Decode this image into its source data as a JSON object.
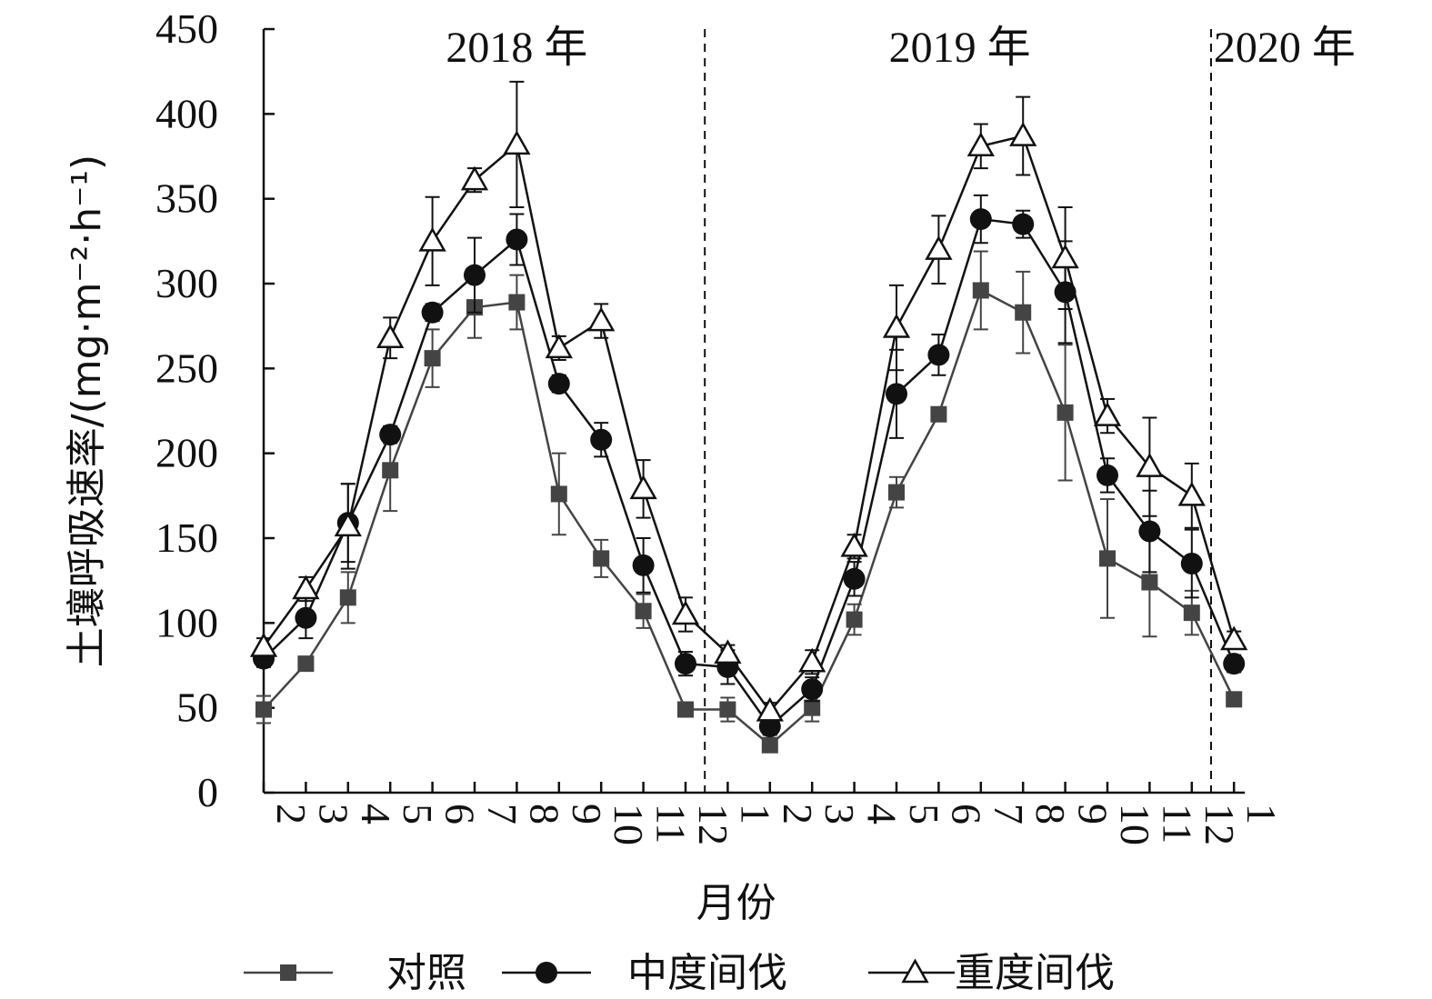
{
  "chart_data": {
    "type": "line",
    "ylabel": "土壤呼吸速率/(mg·m⁻²·h⁻¹)",
    "xlabel": "月份",
    "ylim": [
      0,
      450
    ],
    "yticks": [
      0,
      50,
      100,
      150,
      200,
      250,
      300,
      350,
      400,
      450
    ],
    "categories": [
      "2",
      "3",
      "4",
      "5",
      "6",
      "7",
      "8",
      "9",
      "10",
      "11",
      "12",
      "1",
      "2",
      "3",
      "4",
      "5",
      "6",
      "7",
      "8",
      "9",
      "10",
      "11",
      "12",
      "1"
    ],
    "year_labels": [
      {
        "label": "2018 年",
        "center_index": 6
      },
      {
        "label": "2019 年",
        "center_index": 16.5
      },
      {
        "label": "2020 年",
        "center_index": 24.2
      }
    ],
    "dividers_after_index": [
      10.5,
      22.5
    ],
    "grid": false,
    "legend_position": "bottom",
    "series": [
      {
        "name": "对照",
        "marker": "square",
        "color": "#444444",
        "values": [
          49,
          76,
          115,
          190,
          256,
          286,
          289,
          176,
          138,
          107,
          49,
          49,
          28,
          50,
          102,
          177,
          223,
          296,
          283,
          224,
          138,
          124,
          106,
          55
        ],
        "errors": [
          8,
          4,
          15,
          24,
          17,
          18,
          16,
          24,
          11,
          10,
          3,
          7,
          3,
          8,
          9,
          9,
          4,
          23,
          24,
          40,
          35,
          32,
          13,
          3
        ]
      },
      {
        "name": "中度间伐",
        "marker": "circle",
        "color": "#111111",
        "values": [
          79,
          103,
          159,
          211,
          283,
          305,
          326,
          241,
          208,
          134,
          76,
          74,
          39,
          61,
          126,
          235,
          258,
          338,
          335,
          295,
          187,
          154,
          135,
          76
        ],
        "errors": [
          5,
          12,
          23,
          5,
          5,
          22,
          15,
          5,
          10,
          16,
          7,
          10,
          5,
          7,
          10,
          26,
          12,
          14,
          8,
          30,
          10,
          24,
          20,
          5
        ]
      },
      {
        "name": "重度间伐",
        "marker": "triangle",
        "color": "#111111",
        "values": [
          86,
          120,
          157,
          268,
          325,
          361,
          382,
          262,
          278,
          179,
          105,
          82,
          48,
          77,
          145,
          274,
          320,
          381,
          387,
          315,
          222,
          192,
          175,
          90
        ],
        "errors": [
          5,
          7,
          25,
          12,
          26,
          7,
          37,
          7,
          10,
          17,
          10,
          5,
          5,
          7,
          7,
          25,
          20,
          13,
          23,
          30,
          10,
          29,
          19,
          5
        ]
      }
    ]
  }
}
